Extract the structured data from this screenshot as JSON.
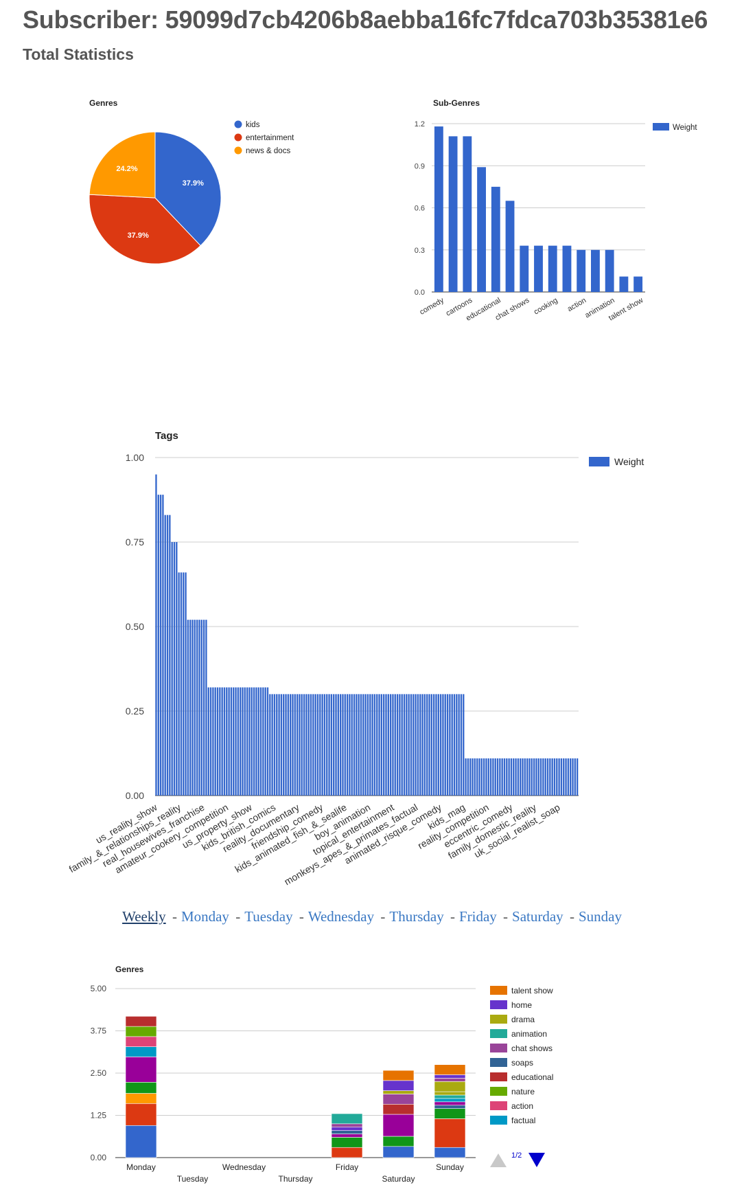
{
  "page": {
    "title": "Subscriber: 59099d7cb4206b8aebba16fc7fdca703b35381e6",
    "section": "Total Statistics"
  },
  "colors": {
    "kids": "#3366cc",
    "entertainment": "#dc3912",
    "news_docs": "#ff9900",
    "bar": "#3366cc"
  },
  "nav": {
    "items": [
      "Weekly",
      "Monday",
      "Tuesday",
      "Wednesday",
      "Thursday",
      "Friday",
      "Saturday",
      "Sunday"
    ],
    "active": "Weekly",
    "separator": "-"
  },
  "pager": {
    "label": "1/2"
  },
  "chart_data": [
    {
      "id": "genres-pie",
      "type": "pie",
      "title": "Genres",
      "slices": [
        {
          "label": "kids",
          "value": 37.9,
          "display": "37.9%",
          "color": "#3366cc"
        },
        {
          "label": "entertainment",
          "value": 37.9,
          "display": "37.9%",
          "color": "#dc3912"
        },
        {
          "label": "news & docs",
          "value": 24.2,
          "display": "24.2%",
          "color": "#ff9900"
        }
      ],
      "legend": "right"
    },
    {
      "id": "subgenres-bar",
      "type": "bar",
      "title": "Sub-Genres",
      "series_name": "Weight",
      "categories": [
        "comedy",
        "",
        "cartoons",
        "",
        "educational",
        "",
        "chat shows",
        "",
        "cooking",
        "",
        "action",
        "",
        "animation",
        "",
        "talent show"
      ],
      "values": [
        1.18,
        1.11,
        1.11,
        0.89,
        0.75,
        0.65,
        0.33,
        0.33,
        0.33,
        0.33,
        0.3,
        0.3,
        0.3,
        0.11,
        0.11
      ],
      "ylim": [
        0,
        1.2
      ],
      "yticks": [
        "0.0",
        "0.3",
        "0.6",
        "0.9",
        "1.2"
      ],
      "legend": "right"
    },
    {
      "id": "tags-bar",
      "type": "bar",
      "title": "Tags",
      "series_name": "Weight",
      "groups": [
        {
          "count": 1,
          "value": 0.95
        },
        {
          "count": 3,
          "value": 0.89
        },
        {
          "count": 3,
          "value": 0.83
        },
        {
          "count": 3,
          "value": 0.75
        },
        {
          "count": 4,
          "value": 0.66
        },
        {
          "count": 9,
          "value": 0.52
        },
        {
          "count": 27,
          "value": 0.32
        },
        {
          "count": 86,
          "value": 0.3
        },
        {
          "count": 50,
          "value": 0.11
        }
      ],
      "xlabels": [
        "us_reality_show",
        "family_&_relationships_reality",
        "real_housewives_franchise",
        "amateur_cookery_competition",
        "us_property_show",
        "kids_british_comics",
        "reality_documentary",
        "friendship_comedy",
        "kids_animated_fish_&_sealife",
        "boy_animation",
        "topical_entertainment",
        "monkeys_apes_&_primates_factual",
        "animated_risque_comedy",
        "kids_mag",
        "reality_competition",
        "eccentric_comedy",
        "family_domestic_reality",
        "uk_social_realist_soap"
      ],
      "ylim": [
        0,
        1
      ],
      "yticks": [
        "0.00",
        "0.25",
        "0.50",
        "0.75",
        "1.00"
      ],
      "legend": "top-right"
    },
    {
      "id": "weekly-genres-stacked",
      "type": "bar",
      "stacked": true,
      "title": "Genres",
      "categories": [
        "Monday",
        "Tuesday",
        "Wednesday",
        "Thursday",
        "Friday",
        "Saturday",
        "Sunday"
      ],
      "ylim": [
        0,
        5
      ],
      "yticks": [
        "0.00",
        "1.25",
        "2.50",
        "3.75",
        "5.00"
      ],
      "legend_entries": [
        {
          "name": "talent show",
          "color": "#e67300"
        },
        {
          "name": "home",
          "color": "#6633cc"
        },
        {
          "name": "drama",
          "color": "#aaaa11"
        },
        {
          "name": "animation",
          "color": "#22aa99"
        },
        {
          "name": "chat shows",
          "color": "#994499"
        },
        {
          "name": "soaps",
          "color": "#316395"
        },
        {
          "name": "educational",
          "color": "#b82e2e"
        },
        {
          "name": "nature",
          "color": "#66aa00"
        },
        {
          "name": "action",
          "color": "#dd4477"
        },
        {
          "name": "factual",
          "color": "#0099c6"
        }
      ],
      "stacks": [
        [
          {
            "v": 0.95,
            "c": "#3366cc"
          },
          {
            "v": 0.65,
            "c": "#dc3912"
          },
          {
            "v": 0.3,
            "c": "#ff9900"
          },
          {
            "v": 0.33,
            "c": "#109618"
          },
          {
            "v": 0.75,
            "c": "#990099"
          },
          {
            "v": 0.3,
            "c": "#0099c6"
          },
          {
            "v": 0.3,
            "c": "#dd4477"
          },
          {
            "v": 0.3,
            "c": "#66aa00"
          },
          {
            "v": 0.3,
            "c": "#b82e2e"
          }
        ],
        [],
        [],
        [],
        [
          {
            "v": 0.3,
            "c": "#dc3912"
          },
          {
            "v": 0.3,
            "c": "#109618"
          },
          {
            "v": 0.1,
            "c": "#990099"
          },
          {
            "v": 0.1,
            "c": "#316395"
          },
          {
            "v": 0.1,
            "c": "#6633cc"
          },
          {
            "v": 0.1,
            "c": "#994499"
          },
          {
            "v": 0.3,
            "c": "#22aa99"
          }
        ],
        [
          {
            "v": 0.33,
            "c": "#3366cc"
          },
          {
            "v": 0.3,
            "c": "#109618"
          },
          {
            "v": 0.65,
            "c": "#990099"
          },
          {
            "v": 0.3,
            "c": "#b82e2e"
          },
          {
            "v": 0.3,
            "c": "#994499"
          },
          {
            "v": 0.1,
            "c": "#aaaa11"
          },
          {
            "v": 0.3,
            "c": "#6633cc"
          },
          {
            "v": 0.3,
            "c": "#e67300"
          }
        ],
        [
          {
            "v": 0.3,
            "c": "#3366cc"
          },
          {
            "v": 0.85,
            "c": "#dc3912"
          },
          {
            "v": 0.3,
            "c": "#109618"
          },
          {
            "v": 0.1,
            "c": "#316395"
          },
          {
            "v": 0.1,
            "c": "#990099"
          },
          {
            "v": 0.1,
            "c": "#0099c6"
          },
          {
            "v": 0.1,
            "c": "#22aa99"
          },
          {
            "v": 0.1,
            "c": "#aaaa11"
          },
          {
            "v": 0.3,
            "c": "#aaaa11"
          },
          {
            "v": 0.1,
            "c": "#994499"
          },
          {
            "v": 0.1,
            "c": "#6633cc"
          },
          {
            "v": 0.3,
            "c": "#e67300"
          }
        ]
      ]
    }
  ]
}
